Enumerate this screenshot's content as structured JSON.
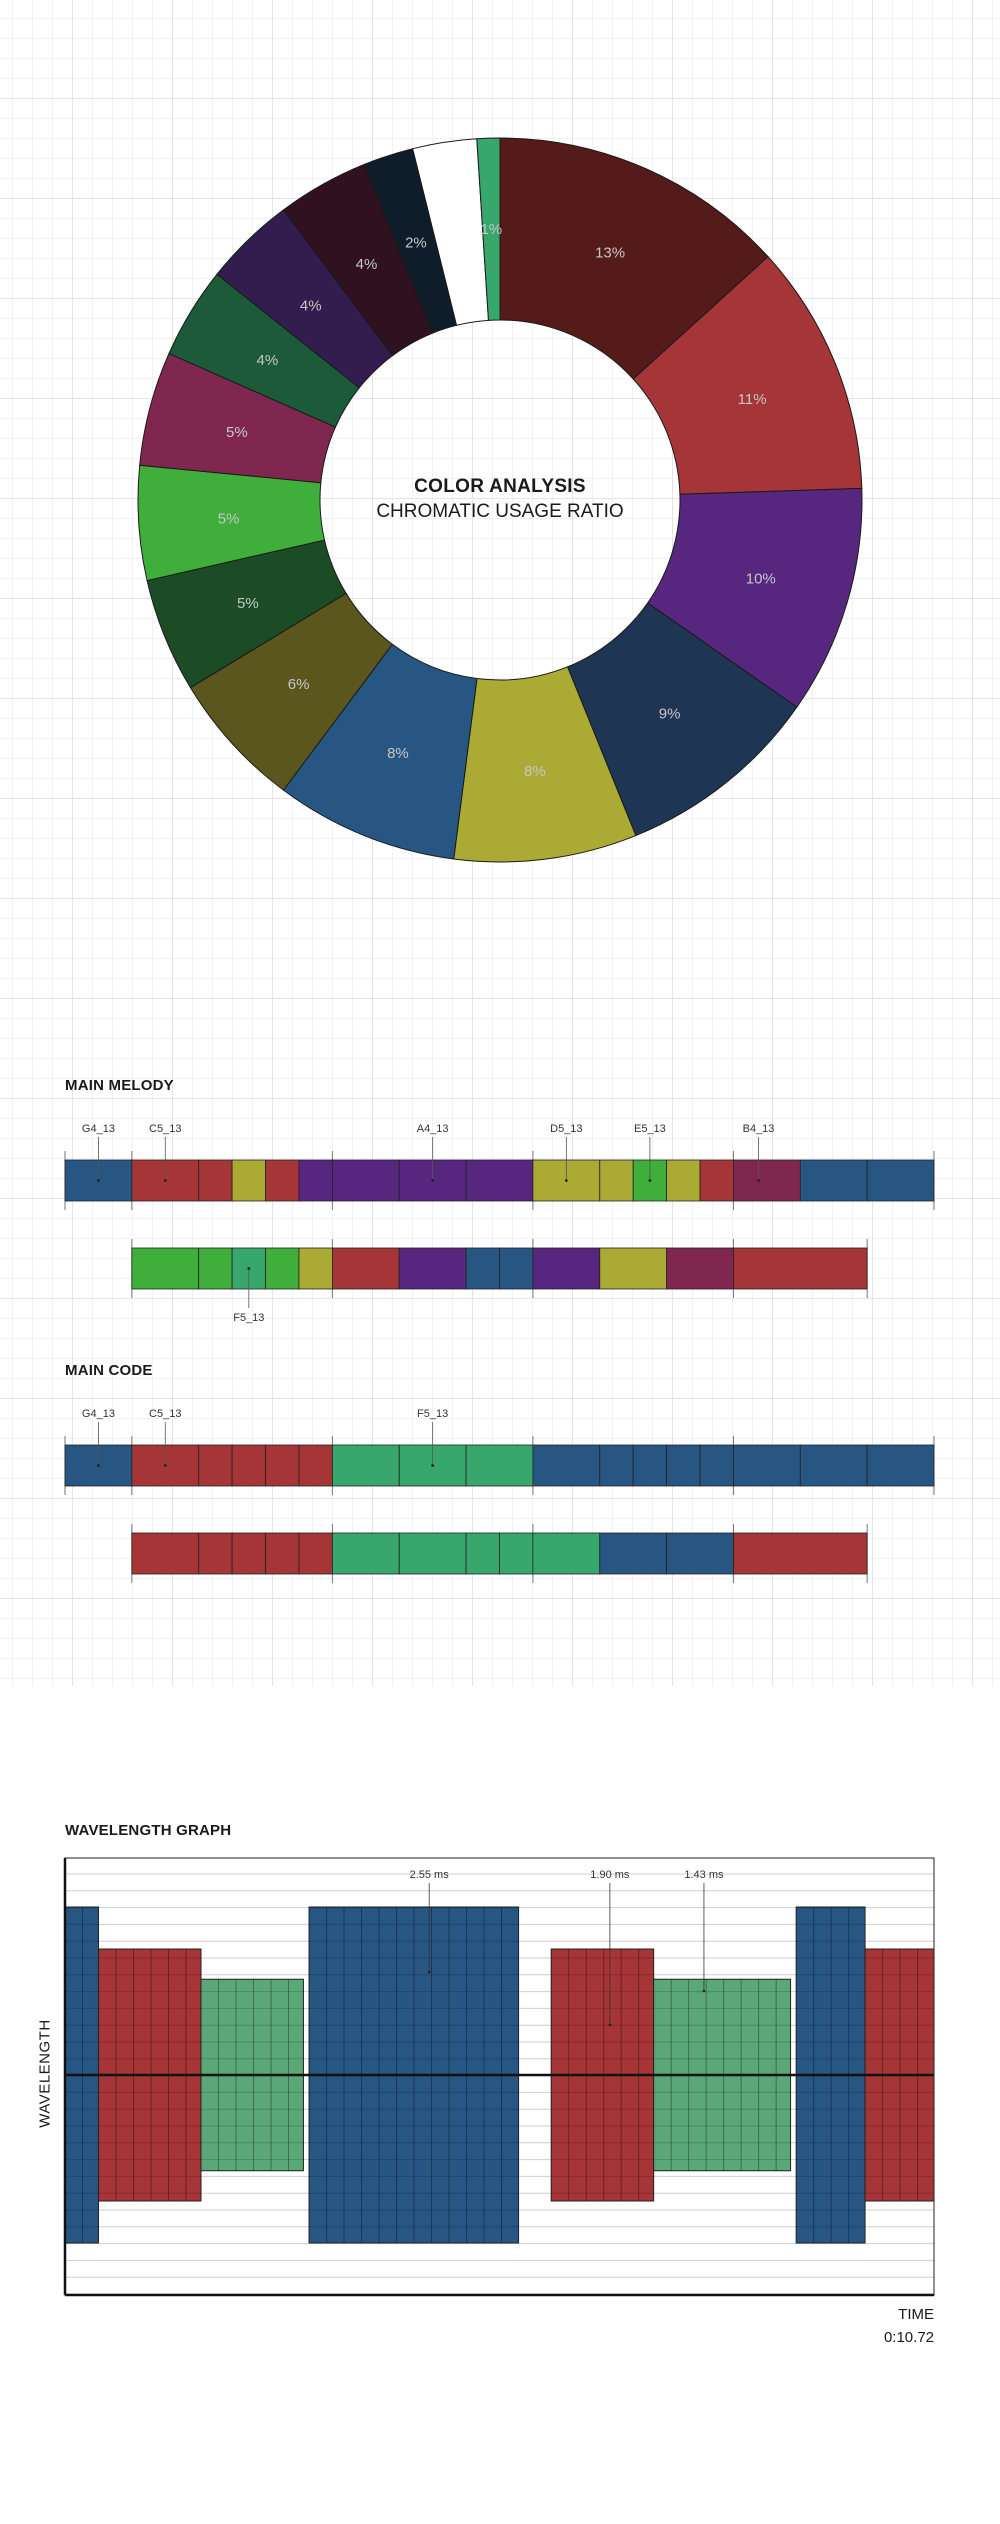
{
  "colors": {
    "c1": "#551b1b",
    "c2": "#a53536",
    "c3": "#57277f",
    "c4": "#1e3553",
    "c5": "#aaaa34",
    "c6": "#285682",
    "c7": "#5b561e",
    "c8": "#1b4c25",
    "c9": "#3fae3a",
    "c10": "#80274f",
    "c11": "#1d5a39",
    "c12": "#331d4e",
    "c13": "#2f1120",
    "c14": "#0f1d2a",
    "c15": "#ffffff",
    "c16": "#37a76c"
  },
  "donut": {
    "title": "COLOR ANALYSIS",
    "subtitle": "CHROMATIC USAGE RATIO"
  },
  "chart_data": [
    {
      "type": "pie",
      "title": "COLOR ANALYSIS",
      "subtitle": "CHROMATIC USAGE RATIO",
      "slices": [
        {
          "label": "13%",
          "value": 13,
          "color": "#551b1b"
        },
        {
          "label": "11%",
          "value": 11,
          "color": "#a53536"
        },
        {
          "label": "10%",
          "value": 10,
          "color": "#57277f"
        },
        {
          "label": "9%",
          "value": 9,
          "color": "#1e3553"
        },
        {
          "label": "8%",
          "value": 8,
          "color": "#aaaa34"
        },
        {
          "label": "8%",
          "value": 8,
          "color": "#285682"
        },
        {
          "label": "6%",
          "value": 6,
          "color": "#5b561e"
        },
        {
          "label": "5%",
          "value": 5,
          "color": "#1b4c25"
        },
        {
          "label": "5%",
          "value": 5,
          "color": "#3fae3a"
        },
        {
          "label": "5%",
          "value": 5,
          "color": "#80274f"
        },
        {
          "label": "4%",
          "value": 4,
          "color": "#1d5a39"
        },
        {
          "label": "4%",
          "value": 4,
          "color": "#331d4e"
        },
        {
          "label": "4%",
          "value": 4,
          "color": "#2f1120"
        },
        {
          "label": "2%",
          "value": 2.2,
          "color": "#0f1d2a"
        },
        {
          "label": "",
          "value": 2.8,
          "color": "#ffffff"
        },
        {
          "label": "1%",
          "value": 1,
          "color": "#37a76c"
        }
      ]
    },
    {
      "type": "table",
      "title": "MAIN MELODY",
      "total_units": 13,
      "tracks": [
        {
          "start": 0,
          "segments": [
            {
              "color": "#285682",
              "length": 1
            },
            {
              "color": "#a53536",
              "length": 1
            },
            {
              "color": "#a53536",
              "length": 0.5
            },
            {
              "color": "#aaaa34",
              "length": 0.5
            },
            {
              "color": "#a53536",
              "length": 0.5
            },
            {
              "color": "#57277f",
              "length": 0.5
            },
            {
              "color": "#57277f",
              "length": 1
            },
            {
              "color": "#57277f",
              "length": 1
            },
            {
              "color": "#57277f",
              "length": 1
            },
            {
              "color": "#aaaa34",
              "length": 1
            },
            {
              "color": "#aaaa34",
              "length": 0.5
            },
            {
              "color": "#3fae3a",
              "length": 0.5
            },
            {
              "color": "#aaaa34",
              "length": 0.5
            },
            {
              "color": "#a53536",
              "length": 0.5
            },
            {
              "color": "#80274f",
              "length": 1
            },
            {
              "color": "#285682",
              "length": 1
            },
            {
              "color": "#285682",
              "length": 1
            }
          ],
          "labels": [
            {
              "text": "G4_13",
              "at": 0.5
            },
            {
              "text": "C5_13",
              "at": 1.5
            },
            {
              "text": "A4_13",
              "at": 5.5
            },
            {
              "text": "D5_13",
              "at": 7.5
            },
            {
              "text": "E5_13",
              "at": 8.75
            },
            {
              "text": "B4_13",
              "at": 10.375
            }
          ]
        },
        {
          "start": 1,
          "segments": [
            {
              "color": "#3fae3a",
              "length": 1
            },
            {
              "color": "#3fae3a",
              "length": 0.5
            },
            {
              "color": "#37a76c",
              "length": 0.5
            },
            {
              "color": "#3fae3a",
              "length": 0.5
            },
            {
              "color": "#aaaa34",
              "length": 0.5
            },
            {
              "color": "#a53536",
              "length": 1
            },
            {
              "color": "#57277f",
              "length": 1
            },
            {
              "color": "#285682",
              "length": 0.5
            },
            {
              "color": "#285682",
              "length": 0.5
            },
            {
              "color": "#57277f",
              "length": 1
            },
            {
              "color": "#aaaa34",
              "length": 1
            },
            {
              "color": "#80274f",
              "length": 1
            },
            {
              "color": "#a53536",
              "length": 2
            }
          ],
          "labels": [
            {
              "text": "F5_13",
              "at": 2.75
            }
          ]
        }
      ]
    },
    {
      "type": "table",
      "title": "MAIN CODE",
      "total_units": 13,
      "tracks": [
        {
          "start": 0,
          "segments": [
            {
              "color": "#285682",
              "length": 1
            },
            {
              "color": "#a53536",
              "length": 1
            },
            {
              "color": "#a53536",
              "length": 0.5
            },
            {
              "color": "#a53536",
              "length": 0.5
            },
            {
              "color": "#a53536",
              "length": 0.5
            },
            {
              "color": "#a53536",
              "length": 0.5
            },
            {
              "color": "#37a76c",
              "length": 1
            },
            {
              "color": "#37a76c",
              "length": 1
            },
            {
              "color": "#37a76c",
              "length": 1
            },
            {
              "color": "#285682",
              "length": 1
            },
            {
              "color": "#285682",
              "length": 0.5
            },
            {
              "color": "#285682",
              "length": 0.5
            },
            {
              "color": "#285682",
              "length": 0.5
            },
            {
              "color": "#285682",
              "length": 0.5
            },
            {
              "color": "#285682",
              "length": 1
            },
            {
              "color": "#285682",
              "length": 1
            },
            {
              "color": "#285682",
              "length": 1
            }
          ],
          "labels": [
            {
              "text": "G4_13",
              "at": 0.5
            },
            {
              "text": "C5_13",
              "at": 1.5
            },
            {
              "text": "F5_13",
              "at": 5.5
            }
          ]
        },
        {
          "start": 1,
          "segments": [
            {
              "color": "#a53536",
              "length": 1
            },
            {
              "color": "#a53536",
              "length": 0.5
            },
            {
              "color": "#a53536",
              "length": 0.5
            },
            {
              "color": "#a53536",
              "length": 0.5
            },
            {
              "color": "#a53536",
              "length": 0.5
            },
            {
              "color": "#37a76c",
              "length": 1
            },
            {
              "color": "#37a76c",
              "length": 1
            },
            {
              "color": "#37a76c",
              "length": 0.5
            },
            {
              "color": "#37a76c",
              "length": 0.5
            },
            {
              "color": "#37a76c",
              "length": 1
            },
            {
              "color": "#285682",
              "length": 1
            },
            {
              "color": "#285682",
              "length": 1
            },
            {
              "color": "#a53536",
              "length": 2
            }
          ],
          "labels": []
        }
      ]
    },
    {
      "type": "bar",
      "title": "WAVELENGTH GRAPH",
      "ylabel": "WAVELENGTH",
      "xlabel": "TIME",
      "time_readout": "0:10.72",
      "blocks": [
        {
          "color": "#285682",
          "start": 0,
          "width": 0.36,
          "amp": 1.0
        },
        {
          "color": "#a53536",
          "start": 0.36,
          "width": 1.1,
          "amp": 0.75
        },
        {
          "color": "#5aa877",
          "start": 1.46,
          "width": 1.1,
          "amp": 0.57
        },
        {
          "color": "#285682",
          "start": 2.62,
          "width": 2.25,
          "amp": 1.0
        },
        {
          "color": "#a53536",
          "start": 5.22,
          "width": 1.1,
          "amp": 0.75
        },
        {
          "color": "#5aa877",
          "start": 6.32,
          "width": 1.47,
          "amp": 0.57
        },
        {
          "color": "#285682",
          "start": 7.85,
          "width": 0.74,
          "amp": 1.0
        },
        {
          "color": "#a53536",
          "start": 8.59,
          "width": 0.74,
          "amp": 0.75
        }
      ],
      "x_range": [
        0,
        9.33
      ],
      "annotations": [
        {
          "text": "2.55 ms",
          "at": 3.91
        },
        {
          "text": "1.90 ms",
          "at": 5.85
        },
        {
          "text": "1.43 ms",
          "at": 6.86
        }
      ]
    }
  ]
}
